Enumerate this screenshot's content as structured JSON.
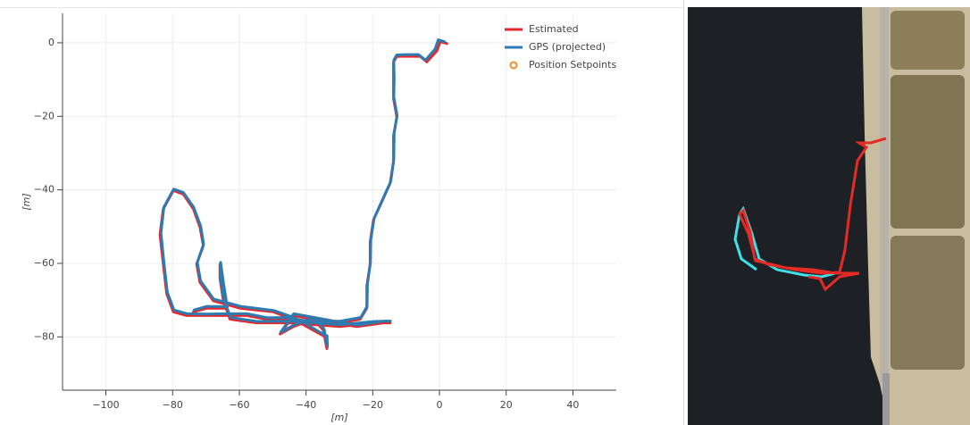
{
  "chart_data": {
    "type": "line",
    "xlabel": "[m]",
    "ylabel": "[m]",
    "xlim": [
      -113,
      53
    ],
    "ylim": [
      -94.5,
      8
    ],
    "xticks": [
      {
        "value": -100,
        "label": "−100"
      },
      {
        "value": -80,
        "label": "−80"
      },
      {
        "value": -60,
        "label": "−60"
      },
      {
        "value": -40,
        "label": "−40"
      },
      {
        "value": -20,
        "label": "−20"
      },
      0,
      20,
      40
    ],
    "yticks": [
      0,
      {
        "value": -20,
        "label": "−20"
      },
      {
        "value": -40,
        "label": "−40"
      },
      {
        "value": -60,
        "label": "−60"
      },
      {
        "value": -80,
        "label": "−80"
      }
    ],
    "grid": true,
    "legend": "top-right",
    "series": [
      {
        "name": "Estimated",
        "color": "#e8272b",
        "marker": "line",
        "x": [
          2,
          0,
          -1,
          -4,
          -6,
          -10,
          -13,
          -14,
          -14,
          -14,
          -13,
          -14,
          -14,
          -15,
          -17,
          -20,
          -21,
          -21,
          -22,
          -22,
          -24,
          -30,
          -36,
          -40,
          -46,
          -52,
          -58,
          -64,
          -70,
          -76,
          -80,
          -82,
          -83,
          -84,
          -83,
          -80,
          -77,
          -74,
          -72,
          -71,
          -73,
          -72,
          -68,
          -60,
          -50,
          -44,
          -40,
          -36,
          -34,
          -34,
          -35,
          -38,
          -44,
          -48,
          -44,
          -32,
          -25,
          -17,
          -15,
          -20,
          -30,
          -45,
          -55,
          -63,
          -65,
          -66,
          -66,
          -65,
          -64,
          -70,
          -74
        ],
        "y": [
          0,
          0.5,
          -2,
          -5,
          -3.5,
          -3.5,
          -3.5,
          -5,
          -10,
          -15,
          -20,
          -25,
          -32,
          -38,
          -42,
          -48,
          -54,
          -60,
          -66,
          -72,
          -75,
          -76,
          -76,
          -76,
          -75,
          -75,
          -74,
          -74,
          -74,
          -74,
          -73,
          -68,
          -60,
          -52,
          -45,
          -40,
          -41,
          -45,
          -50,
          -55,
          -60,
          -65,
          -70,
          -72,
          -73,
          -75,
          -77,
          -79,
          -80,
          -83,
          -78,
          -75,
          -77,
          -79,
          -74,
          -76,
          -77,
          -76,
          -76,
          -76,
          -77,
          -76,
          -76,
          -75,
          -70,
          -64,
          -60,
          -66,
          -72,
          -72,
          -73
        ]
      },
      {
        "name": "GPS (projected)",
        "color": "#2d7bb0",
        "marker": "line",
        "x": [
          1.5,
          -0.4,
          -1.3,
          -4.2,
          -6.3,
          -10.2,
          -12.8,
          -13.7,
          -13.6,
          -13.7,
          -12.7,
          -13.6,
          -13.7,
          -14.6,
          -16.6,
          -19.6,
          -20.6,
          -20.7,
          -21.6,
          -21.7,
          -23.6,
          -29.6,
          -35.7,
          -39.7,
          -45.6,
          -51.6,
          -57.7,
          -63.6,
          -69.6,
          -75.6,
          -79.6,
          -81.6,
          -82.6,
          -83.5,
          -82.6,
          -79.7,
          -76.8,
          -73.7,
          -71.6,
          -70.7,
          -72.6,
          -71.6,
          -67.7,
          -59.6,
          -49.7,
          -43.7,
          -39.6,
          -35.7,
          -33.7,
          -33.6,
          -34.6,
          -37.7,
          -43.6,
          -47.6,
          -43.7,
          -31.6,
          -24.7,
          -16.6,
          -14.7,
          -19.6,
          -29.7,
          -44.6,
          -54.7,
          -62.6,
          -64.7,
          -65.7,
          -65.6,
          -64.7,
          -63.6,
          -69.7,
          -73.6
        ],
        "y": [
          0.3,
          0.8,
          -1.7,
          -4.7,
          -3.2,
          -3.2,
          -3.3,
          -4.7,
          -9.7,
          -14.8,
          -19.7,
          -24.7,
          -31.8,
          -37.7,
          -41.7,
          -47.8,
          -53.7,
          -59.8,
          -65.7,
          -71.7,
          -74.7,
          -75.7,
          -75.8,
          -75.7,
          -74.7,
          -74.8,
          -73.7,
          -73.7,
          -73.8,
          -73.7,
          -72.7,
          -67.8,
          -59.7,
          -51.8,
          -44.7,
          -39.8,
          -40.7,
          -44.7,
          -49.8,
          -54.7,
          -59.7,
          -64.8,
          -69.7,
          -71.7,
          -72.8,
          -74.7,
          -76.7,
          -78.8,
          -79.7,
          -82.7,
          -77.8,
          -74.7,
          -76.8,
          -78.7,
          -73.7,
          -75.7,
          -76.8,
          -75.7,
          -75.7,
          -75.8,
          -76.7,
          -75.7,
          -75.8,
          -74.7,
          -69.7,
          -63.8,
          -59.7,
          -65.7,
          -71.8,
          -71.7,
          -72.7
        ]
      },
      {
        "name": "Position Setpoints",
        "color": "#f28e2b",
        "marker": "circle",
        "x": [],
        "y": []
      }
    ]
  }
}
